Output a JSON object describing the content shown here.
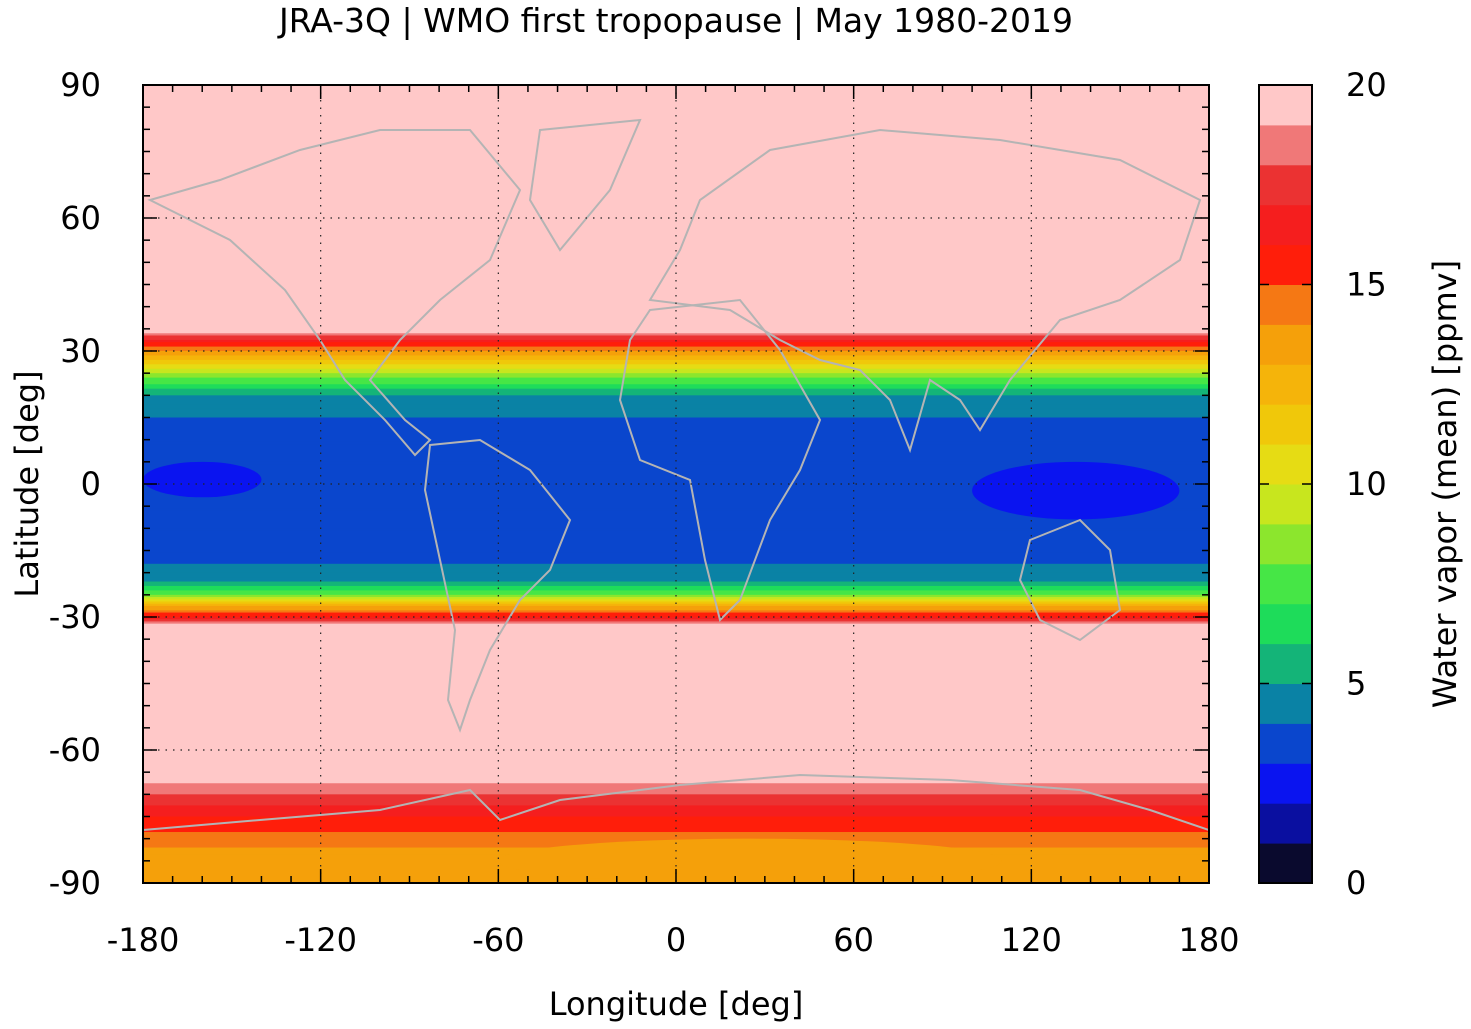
{
  "chart_data": {
    "type": "heatmap",
    "title": "JRA-3Q | WMO first tropopause | May 1980-2019",
    "xlabel": "Longitude [deg]",
    "ylabel": "Latitude [deg]",
    "colorbar_label": "Water vapor (mean) [ppmv]",
    "xlim": [
      -180,
      180
    ],
    "ylim": [
      -90,
      90
    ],
    "x_ticks": [
      -180,
      -120,
      -60,
      0,
      60,
      120,
      180
    ],
    "x_tick_labels": [
      "-180",
      "-120",
      "-60",
      "0",
      "60",
      "120",
      "180"
    ],
    "y_ticks": [
      90,
      60,
      30,
      0,
      -30,
      -60,
      -90
    ],
    "y_tick_labels": [
      "90",
      "60",
      "30",
      "0",
      "-30",
      "-60",
      "-90"
    ],
    "colorbar_range": [
      0,
      20
    ],
    "colorbar_ticks": [
      20,
      15,
      10,
      5,
      0
    ],
    "colorbar_tick_labels": [
      "20",
      "15",
      "10",
      "5",
      "0"
    ],
    "grid": "dotted",
    "levels": [
      0,
      1,
      2,
      3,
      4,
      5,
      6,
      7,
      8,
      9,
      10,
      11,
      12,
      13,
      14,
      15,
      16,
      17,
      18,
      19,
      20
    ],
    "level_colors": [
      "#0a0a2e",
      "#0a0fa0",
      "#0a14f0",
      "#0a46cd",
      "#0a82a5",
      "#14b478",
      "#1edc5a",
      "#46e646",
      "#8ce62d",
      "#c8e61e",
      "#e6dc14",
      "#f0c80a",
      "#f5b40a",
      "#f5a00a",
      "#f57814",
      "#ff1e0a",
      "#f51e1e",
      "#eb3232",
      "#f07878",
      "#ffc8c8"
    ],
    "coastline_color": "#b4b4b4",
    "approx_zonal_profile": [
      {
        "lat": 90,
        "ppmv": 20
      },
      {
        "lat": 35,
        "ppmv": 20
      },
      {
        "lat": 32,
        "ppmv": 16
      },
      {
        "lat": 28,
        "ppmv": 12
      },
      {
        "lat": 24,
        "ppmv": 8
      },
      {
        "lat": 20,
        "ppmv": 5
      },
      {
        "lat": 15,
        "ppmv": 4
      },
      {
        "lat": 5,
        "ppmv": 3.5
      },
      {
        "lat": 0,
        "ppmv": 3.5
      },
      {
        "lat": -5,
        "ppmv": 3.5
      },
      {
        "lat": -18,
        "ppmv": 4
      },
      {
        "lat": -22,
        "ppmv": 5
      },
      {
        "lat": -25,
        "ppmv": 8
      },
      {
        "lat": -27,
        "ppmv": 12
      },
      {
        "lat": -30,
        "ppmv": 16
      },
      {
        "lat": -32,
        "ppmv": 20
      },
      {
        "lat": -65,
        "ppmv": 20
      },
      {
        "lat": -70,
        "ppmv": 18
      },
      {
        "lat": -75,
        "ppmv": 16
      },
      {
        "lat": -82,
        "ppmv": 14
      },
      {
        "lat": -90,
        "ppmv": 13
      }
    ],
    "notable_features": [
      {
        "region": "western Pacific warm pool",
        "lon": [
          100,
          170
        ],
        "lat": [
          -8,
          5
        ],
        "ppmv": 2.5
      },
      {
        "region": "central Pacific equator",
        "lon": [
          -180,
          -140
        ],
        "lat": [
          -3,
          5
        ],
        "ppmv": 2.5
      },
      {
        "region": "Antarctic interior minimum",
        "lon": [
          -60,
          110
        ],
        "lat": [
          -90,
          -80
        ],
        "ppmv": 13
      }
    ]
  }
}
